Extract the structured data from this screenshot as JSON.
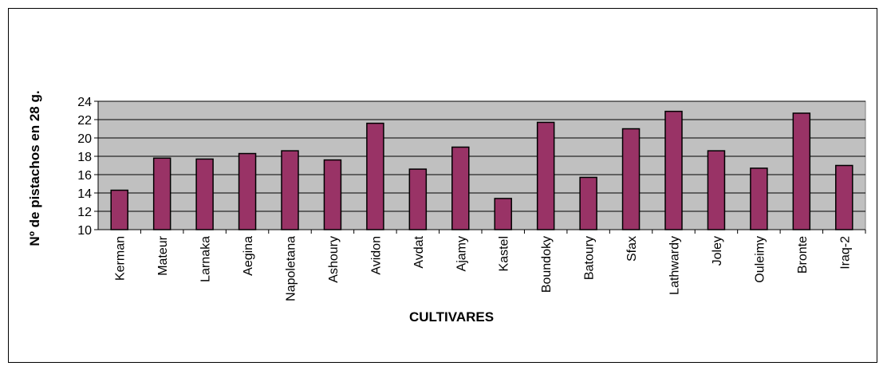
{
  "chart_data": {
    "type": "bar",
    "title": "",
    "xlabel": "CULTIVARES",
    "ylabel": "Nº de pistachos en 28 g.",
    "ylim": [
      10,
      24
    ],
    "yticks": [
      10,
      12,
      14,
      16,
      18,
      20,
      22,
      24
    ],
    "grid": true,
    "legend": "none",
    "categories": [
      "Kerman",
      "Mateur",
      "Larnaka",
      "Aegina",
      "Napoletana",
      "Ashoury",
      "Avidon",
      "Avdat",
      "Ajamy",
      "Kastel",
      "Boundoky",
      "Batoury",
      "Sfax",
      "Lathwardy",
      "Joley",
      "Ouleimy",
      "Bronte",
      "Iraq-2"
    ],
    "values": [
      14.3,
      17.8,
      17.7,
      18.3,
      18.6,
      17.6,
      21.6,
      16.6,
      19.0,
      13.4,
      21.7,
      15.7,
      21.0,
      22.9,
      18.6,
      16.7,
      22.7,
      17.0
    ],
    "colors": {
      "bar": "#993366",
      "plot_background": "#C0C0C0",
      "gridline": "#000000"
    }
  }
}
